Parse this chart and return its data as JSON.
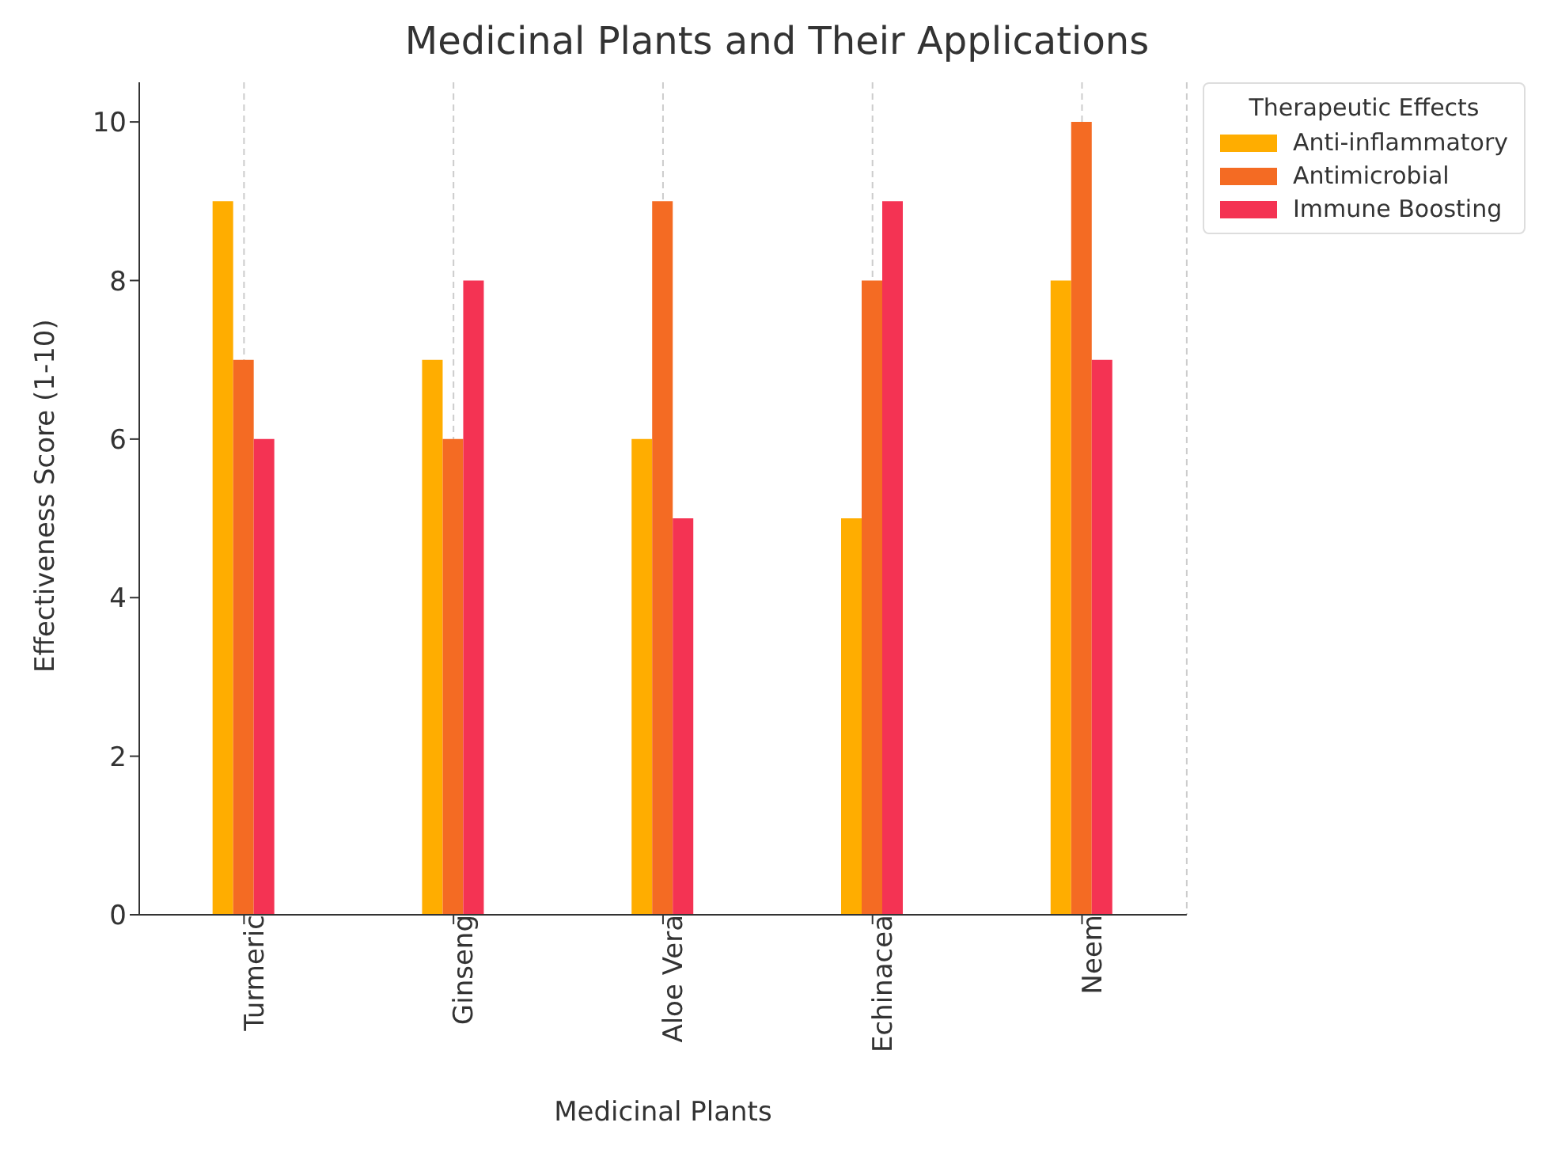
{
  "chart_data": {
    "type": "bar",
    "title": "Medicinal Plants and Their Applications",
    "xlabel": "Medicinal Plants",
    "ylabel": "Effectiveness Score (1-10)",
    "legend_title": "Therapeutic Effects",
    "categories": [
      "Turmeric",
      "Ginseng",
      "Aloe Vera",
      "Echinacea",
      "Neem"
    ],
    "series": [
      {
        "name": "Anti-inflammatory",
        "color": "#ffad00",
        "values": [
          9,
          7,
          6,
          5,
          8
        ]
      },
      {
        "name": "Antimicrobial",
        "color": "#f46b23",
        "values": [
          7,
          6,
          9,
          8,
          10
        ]
      },
      {
        "name": "Immune Boosting",
        "color": "#f43353",
        "values": [
          6,
          8,
          5,
          9,
          7
        ]
      }
    ],
    "ylim": [
      0,
      10.5
    ],
    "yticks": [
      0,
      2,
      4,
      6,
      8,
      10
    ],
    "grid": "x",
    "legend": "top right"
  }
}
